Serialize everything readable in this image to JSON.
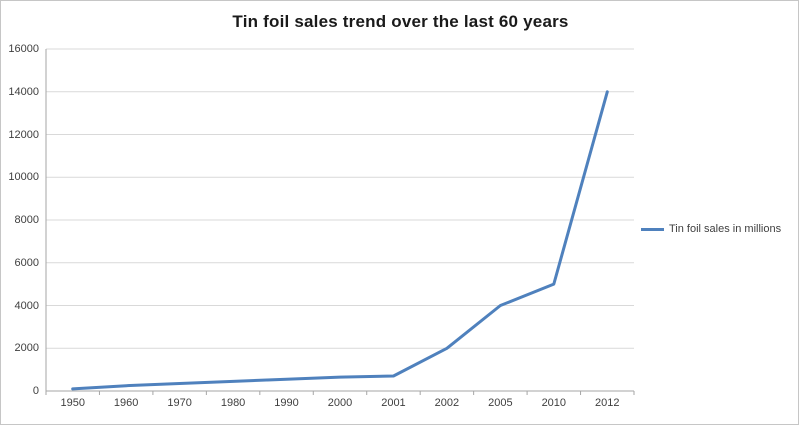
{
  "window": {
    "background": "#ffffff",
    "frame_border_color": "#c6c6c6"
  },
  "chart_data": {
    "type": "line",
    "title": "Tin foil sales trend over the last 60 years",
    "categories": [
      "1950",
      "1960",
      "1970",
      "1980",
      "1990",
      "2000",
      "2001",
      "2002",
      "2005",
      "2010",
      "2012"
    ],
    "series": [
      {
        "name": "Tin foil sales in millions",
        "color": "#4f81bd",
        "values": [
          100,
          250,
          350,
          450,
          550,
          650,
          700,
          2000,
          4000,
          5000,
          14000
        ]
      }
    ],
    "xlabel": "",
    "ylabel": "",
    "ylim": [
      0,
      16000
    ],
    "ytick_step": 2000,
    "grid": true,
    "legend_position": "right",
    "axis_color": "#a6a6a6",
    "grid_color": "#d9d9d9",
    "tick_label_color": "#3f3f3f",
    "line_width": 3
  }
}
